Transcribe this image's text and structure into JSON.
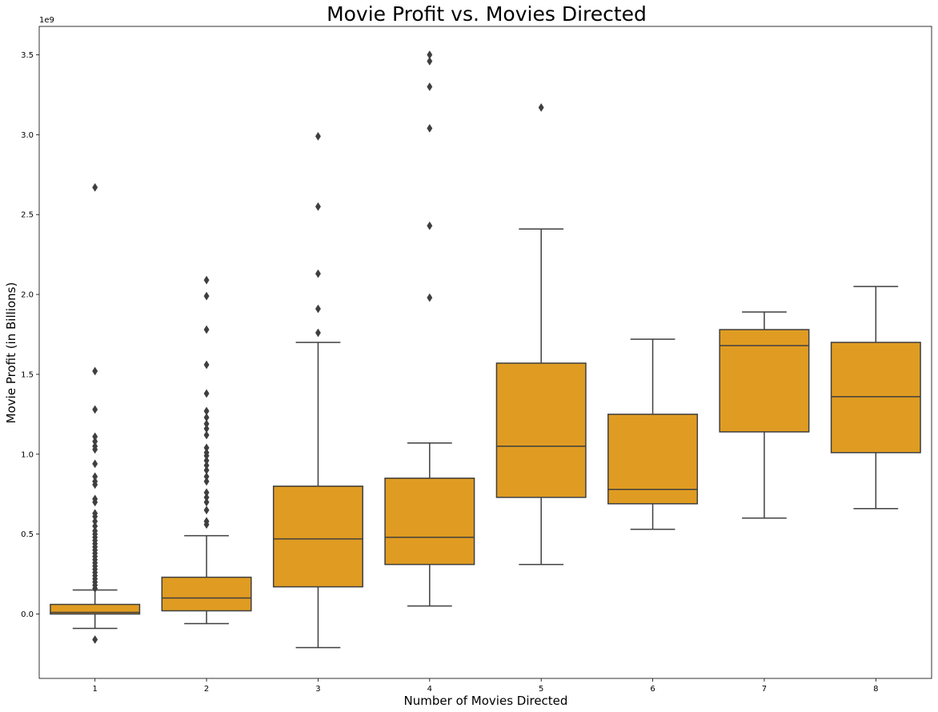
{
  "chart_data": {
    "type": "box",
    "title": "Movie Profit vs. Movies Directed",
    "xlabel": "Number of Movies Directed",
    "ylabel": "Movie Profit (in Billions)",
    "y_offset_label": "1e9",
    "ylim": [
      -0.4,
      3.69
    ],
    "yticks": [
      0.0,
      0.5,
      1.0,
      1.5,
      2.0,
      2.5,
      3.0,
      3.5
    ],
    "ytick_labels": [
      "0.0",
      "0.5",
      "1.0",
      "1.5",
      "2.0",
      "2.5",
      "3.0",
      "3.5"
    ],
    "categories": [
      "1",
      "2",
      "3",
      "4",
      "5",
      "6",
      "7",
      "8"
    ],
    "box_color": "#e09c22",
    "line_color": "#3f3f3f",
    "boxes": [
      {
        "category": "1",
        "whisker_low": -0.09,
        "q1": 0.0,
        "median": 0.01,
        "q3": 0.06,
        "whisker_high": 0.15,
        "outliers": [
          -0.16,
          0.16,
          0.18,
          0.2,
          0.22,
          0.24,
          0.26,
          0.28,
          0.3,
          0.32,
          0.34,
          0.36,
          0.38,
          0.4,
          0.42,
          0.44,
          0.46,
          0.48,
          0.5,
          0.52,
          0.55,
          0.58,
          0.61,
          0.63,
          0.7,
          0.72,
          0.81,
          0.83,
          0.86,
          0.94,
          1.03,
          1.05,
          1.08,
          1.11,
          1.28,
          1.52,
          2.67
        ]
      },
      {
        "category": "2",
        "whisker_low": -0.06,
        "q1": 0.02,
        "median": 0.1,
        "q3": 0.23,
        "whisker_high": 0.49,
        "outliers": [
          0.56,
          0.58,
          0.65,
          0.7,
          0.73,
          0.76,
          0.83,
          0.86,
          0.9,
          0.93,
          0.96,
          0.99,
          1.01,
          1.04,
          1.12,
          1.16,
          1.19,
          1.23,
          1.27,
          1.38,
          1.56,
          1.78,
          1.99,
          2.09
        ]
      },
      {
        "category": "3",
        "whisker_low": -0.21,
        "q1": 0.17,
        "median": 0.47,
        "q3": 0.8,
        "whisker_high": 1.7,
        "outliers": [
          1.76,
          1.91,
          2.13,
          2.55,
          2.99
        ]
      },
      {
        "category": "4",
        "whisker_low": 0.05,
        "q1": 0.31,
        "median": 0.48,
        "q3": 0.85,
        "whisker_high": 1.07,
        "outliers": [
          1.98,
          2.43,
          3.04,
          3.3,
          3.46,
          3.5
        ]
      },
      {
        "category": "5",
        "whisker_low": 0.31,
        "q1": 0.73,
        "median": 1.05,
        "q3": 1.57,
        "whisker_high": 2.41,
        "outliers": [
          3.17
        ]
      },
      {
        "category": "6",
        "whisker_low": 0.53,
        "q1": 0.69,
        "median": 0.78,
        "q3": 1.25,
        "whisker_high": 1.72,
        "outliers": []
      },
      {
        "category": "7",
        "whisker_low": 0.6,
        "q1": 1.14,
        "median": 1.68,
        "q3": 1.78,
        "whisker_high": 1.89,
        "outliers": []
      },
      {
        "category": "8",
        "whisker_low": 0.66,
        "q1": 1.01,
        "median": 1.36,
        "q3": 1.7,
        "whisker_high": 2.05,
        "outliers": []
      }
    ]
  }
}
